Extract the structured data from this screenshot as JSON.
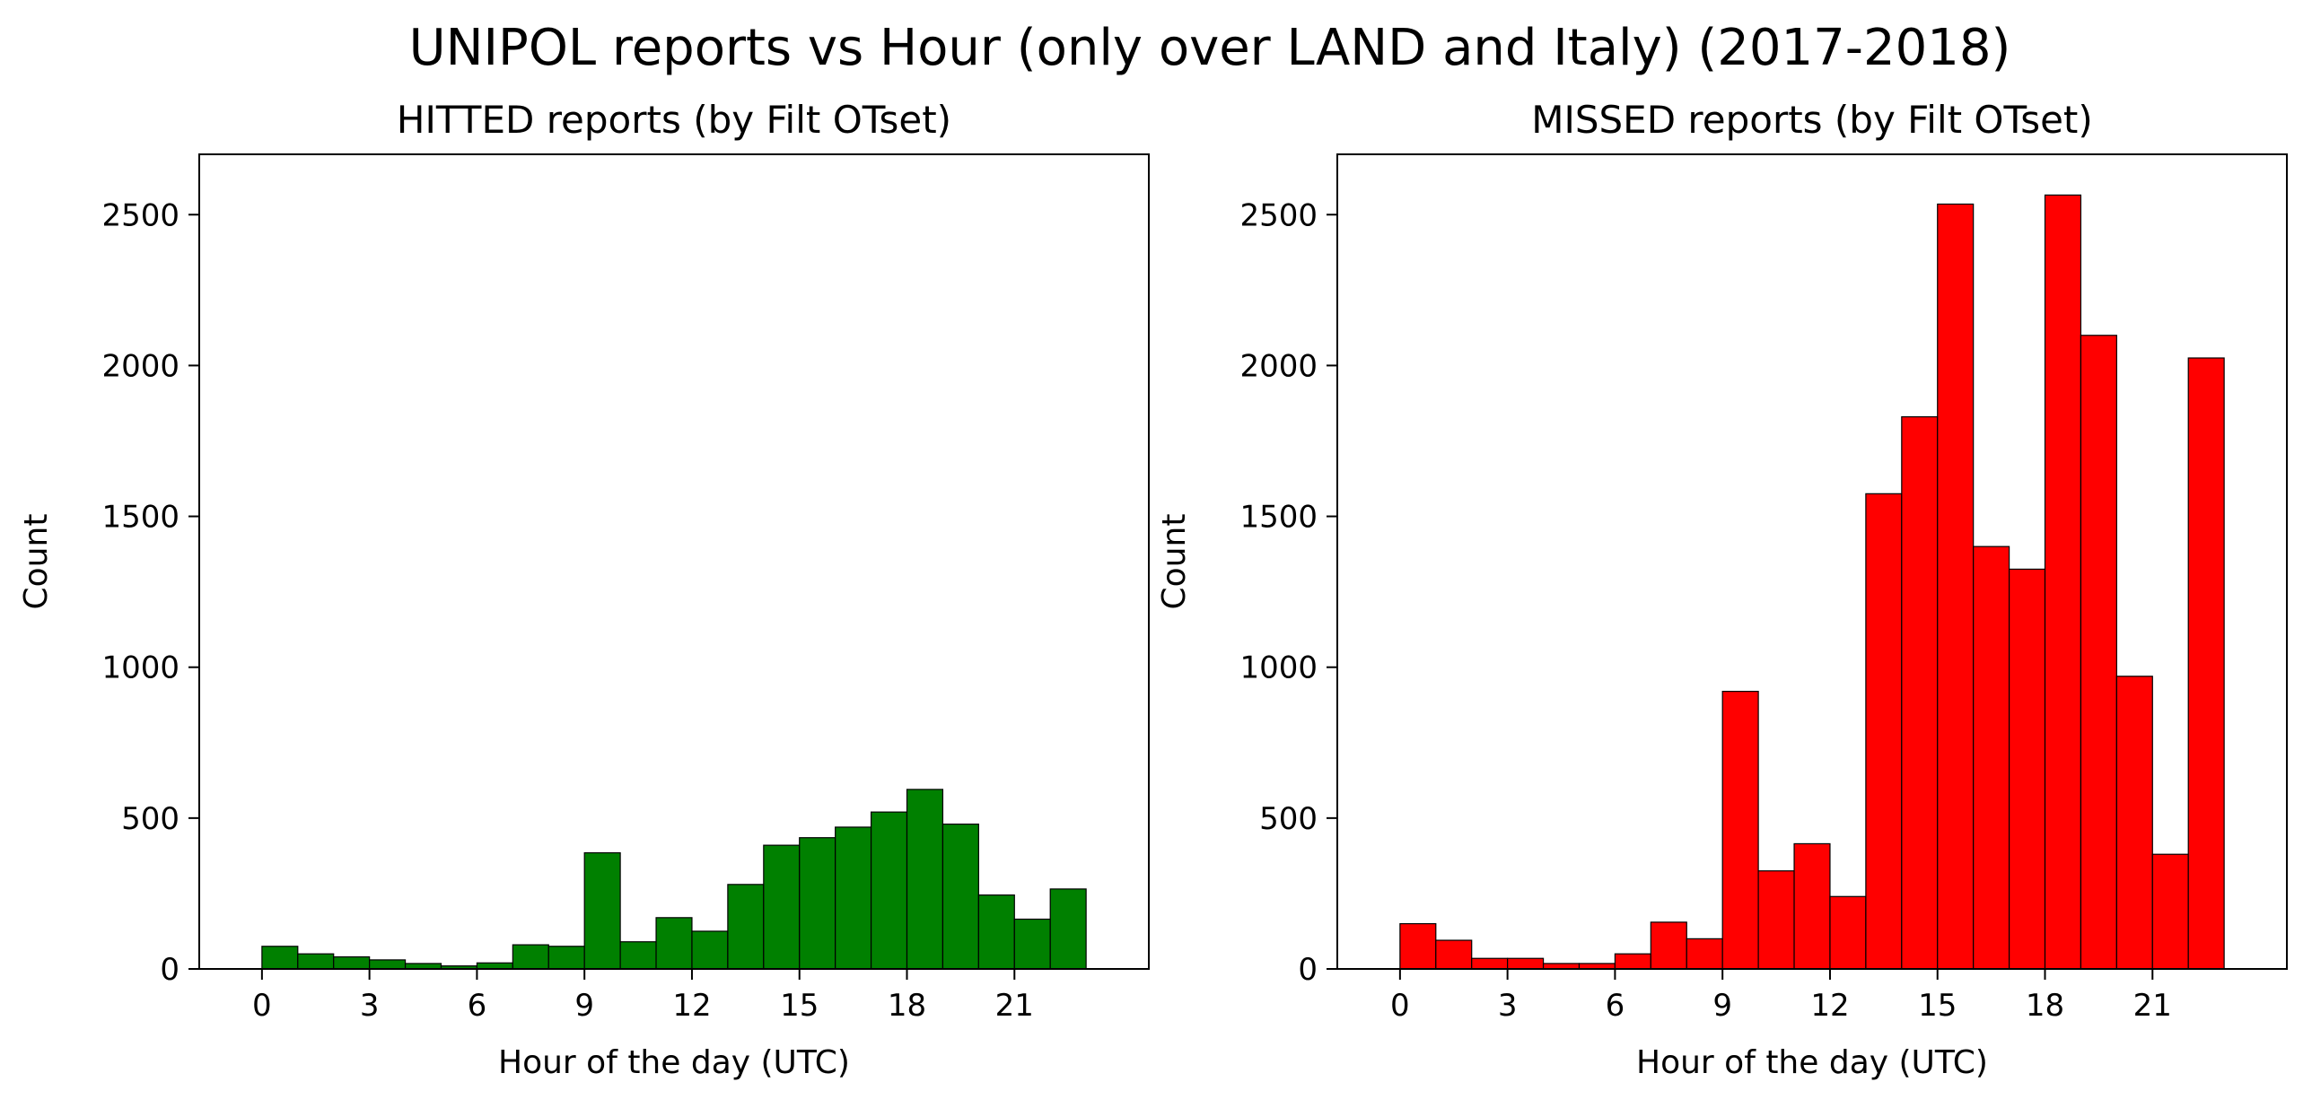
{
  "suptitle": "UNIPOL reports vs Hour (only over LAND and Italy) (2017-2018)",
  "chart_data": [
    {
      "type": "bar",
      "title": "HITTED reports (by Filt OTset)",
      "xlabel": "Hour of the day (UTC)",
      "ylabel": "Count",
      "color": "#008000",
      "edgecolor": "#000000",
      "xlim": [
        -1.75,
        24.75
      ],
      "ylim": [
        0,
        2700
      ],
      "xticks": [
        0,
        3,
        6,
        9,
        12,
        15,
        18,
        21
      ],
      "yticks": [
        0,
        500,
        1000,
        1500,
        2000,
        2500
      ],
      "bin_width": 1,
      "bins_start": [
        0,
        1,
        2,
        3,
        4,
        5,
        6,
        7,
        8,
        9,
        10,
        11,
        12,
        13,
        14,
        15,
        16,
        17,
        18,
        19,
        20,
        21,
        22
      ],
      "values": [
        75,
        50,
        40,
        30,
        18,
        10,
        20,
        80,
        75,
        385,
        90,
        170,
        125,
        280,
        410,
        435,
        470,
        520,
        595,
        480,
        245,
        165,
        265
      ],
      "legend": false,
      "grid": false
    },
    {
      "type": "bar",
      "title": "MISSED reports (by Filt OTset)",
      "xlabel": "Hour of the day (UTC)",
      "ylabel": "Count",
      "color": "#ff0000",
      "edgecolor": "#000000",
      "xlim": [
        -1.75,
        24.75
      ],
      "ylim": [
        0,
        2700
      ],
      "xticks": [
        0,
        3,
        6,
        9,
        12,
        15,
        18,
        21
      ],
      "yticks": [
        0,
        500,
        1000,
        1500,
        2000,
        2500
      ],
      "bin_width": 1,
      "bins_start": [
        0,
        1,
        2,
        3,
        4,
        5,
        6,
        7,
        8,
        9,
        10,
        11,
        12,
        13,
        14,
        15,
        16,
        17,
        18,
        19,
        20,
        21,
        22
      ],
      "values": [
        150,
        95,
        35,
        35,
        18,
        18,
        50,
        155,
        100,
        920,
        325,
        415,
        240,
        1575,
        1830,
        2535,
        1400,
        1325,
        2565,
        2100,
        970,
        380,
        2025
      ],
      "legend": false,
      "grid": false
    }
  ]
}
